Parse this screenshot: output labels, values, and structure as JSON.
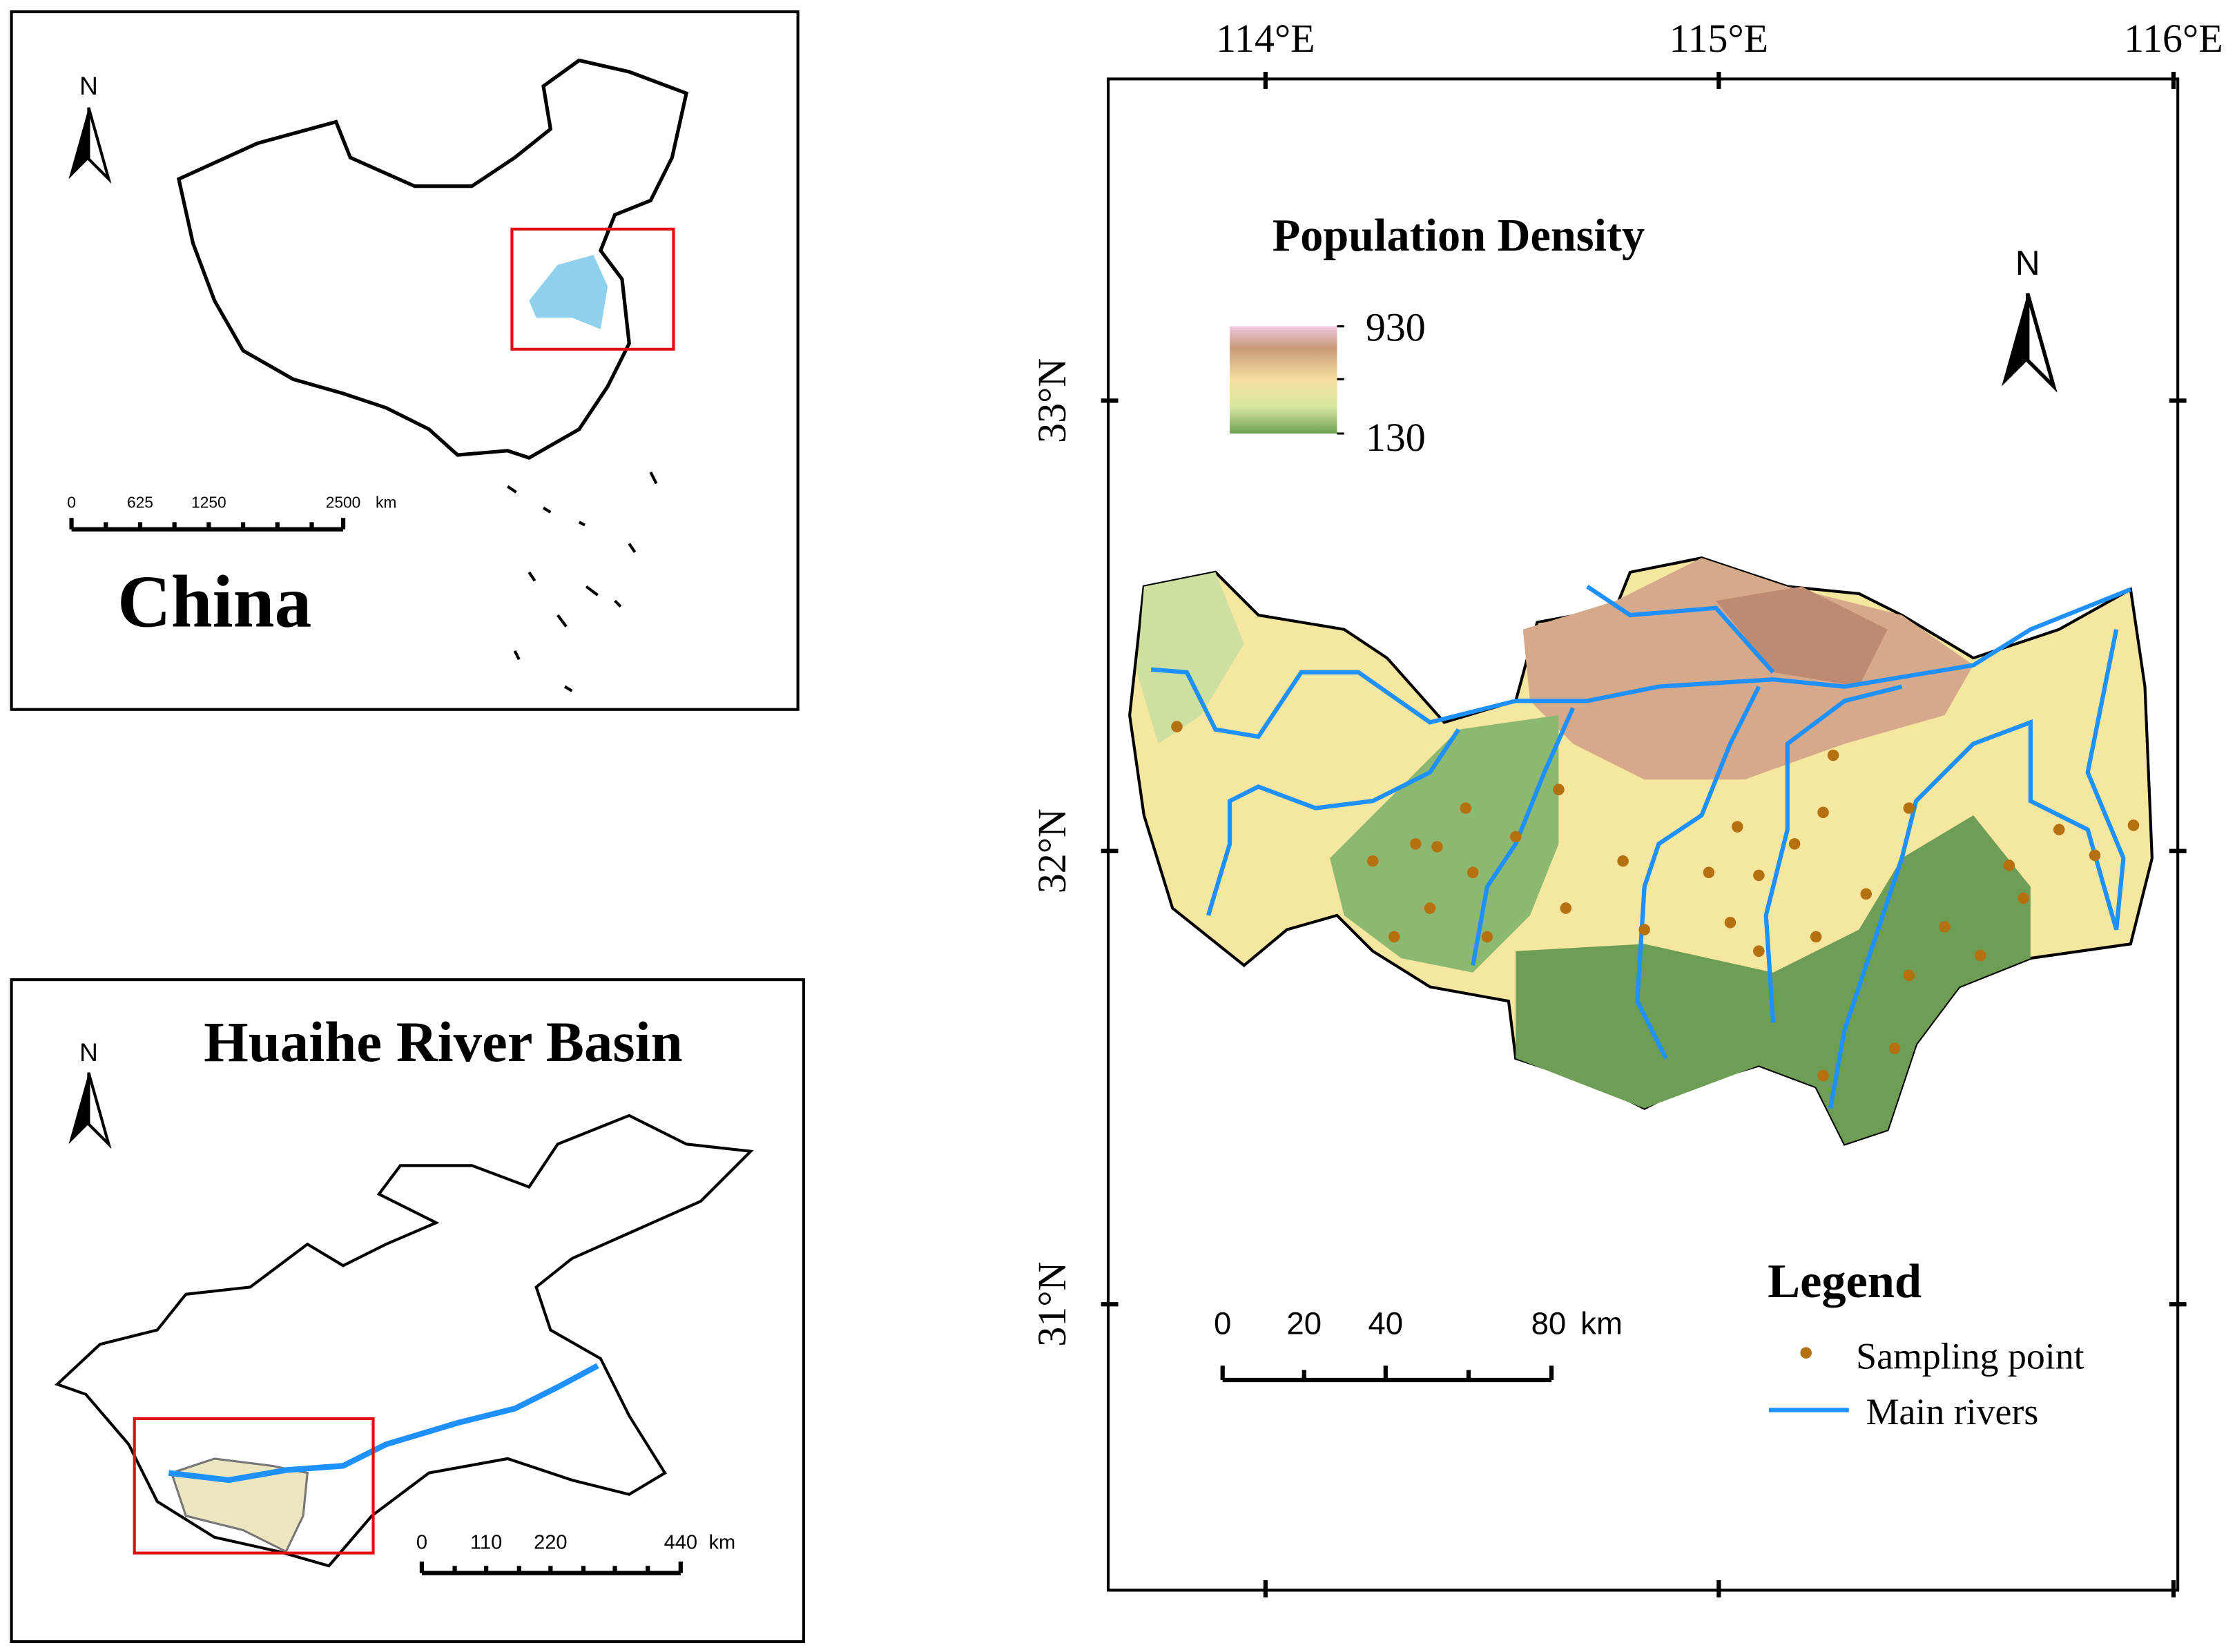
{
  "china_panel": {
    "north": "N",
    "scale": {
      "ticks": [
        "0",
        "625",
        "1250",
        "2500"
      ],
      "unit": "km"
    },
    "title": "China"
  },
  "huaihe_panel": {
    "title": "Huaihe River Basin",
    "north": "N",
    "scale": {
      "ticks": [
        "0",
        "110",
        "220",
        "440"
      ],
      "unit": "km"
    }
  },
  "main_map": {
    "lon_labels": [
      "114°E",
      "115°E",
      "116°E"
    ],
    "lat_labels": [
      "33°N",
      "32°N",
      "31°N"
    ],
    "density_title": "Population Density",
    "density_max": "930",
    "density_min": "130",
    "north": "N",
    "scale": {
      "ticks": [
        "0",
        "20",
        "40",
        "80"
      ],
      "unit": "km"
    },
    "legend": {
      "title": "Legend",
      "items": [
        "Sampling point",
        "Main rivers"
      ]
    }
  }
}
